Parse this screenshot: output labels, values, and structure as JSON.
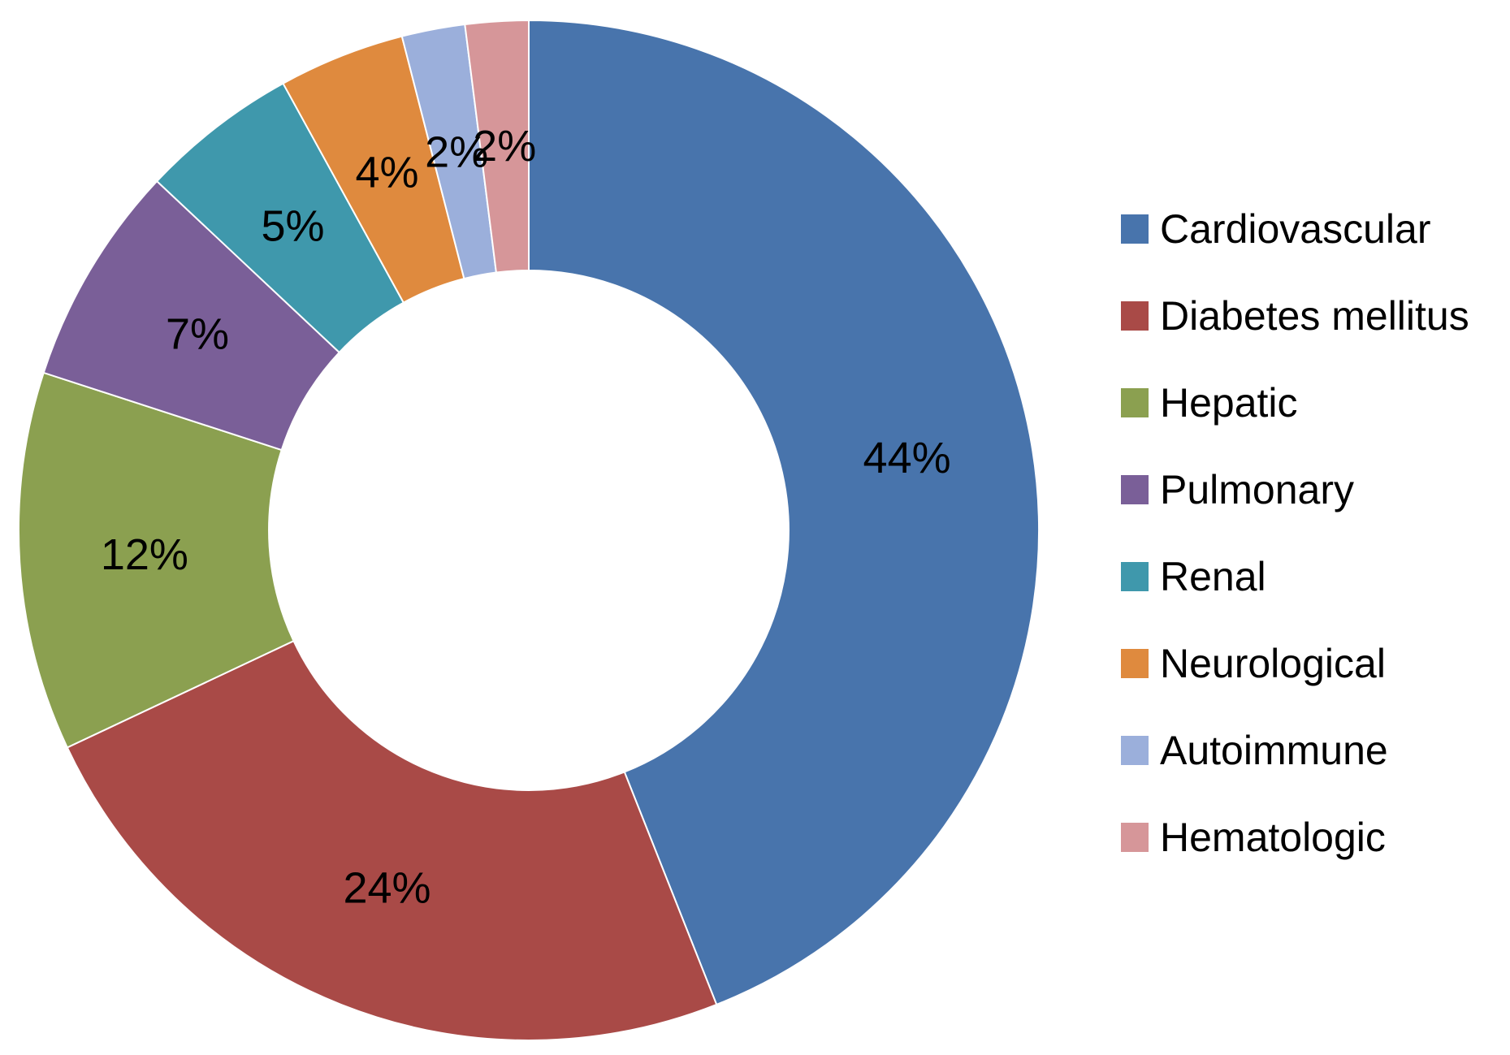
{
  "figure": {
    "background": "#FFFFFF"
  },
  "chart_data": {
    "type": "pie",
    "subtype": "donut",
    "title": "",
    "categories": [
      "Cardiovascular",
      "Diabetes mellitus",
      "Hepatic",
      "Pulmonary",
      "Renal",
      "Neurological",
      "Autoimmune",
      "Hematologic"
    ],
    "values": [
      44,
      24,
      12,
      7,
      5,
      4,
      2,
      2
    ],
    "unit": "%",
    "data_labels": [
      "44%",
      "24%",
      "12%",
      "7%",
      "5%",
      "4%",
      "2%",
      "2%"
    ],
    "colors": [
      "#4874AC",
      "#A94A47",
      "#8BA050",
      "#7A5F98",
      "#3F98AC",
      "#DF8A3E",
      "#9BAFDB",
      "#D69699"
    ],
    "label_color": "#000000",
    "slice_border_color": "#FFFFFF",
    "start_angle_deg": 0,
    "direction": "clockwise",
    "donut_hole_ratio": 0.51,
    "grid": "off",
    "legend": {
      "position": "right",
      "entries": [
        "Cardiovascular",
        "Diabetes mellitus",
        "Hepatic",
        "Pulmonary",
        "Renal",
        "Neurological",
        "Autoimmune",
        "Hematologic"
      ]
    }
  }
}
